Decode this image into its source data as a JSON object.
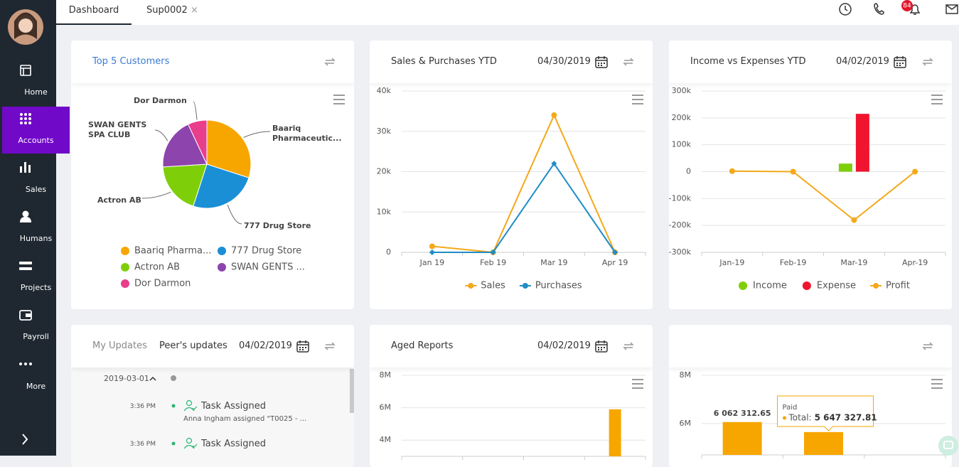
{
  "sidebar": {
    "items": [
      "Home",
      "Accounts",
      "Sales",
      "Humans",
      "Projects",
      "Payroll",
      "More"
    ],
    "active": 1
  },
  "topbar": {
    "tabs": [
      "Dashboard",
      "Sup0002"
    ],
    "notifications": 84
  },
  "updates": {
    "tabs": [
      "My Updates",
      "Peer's updates"
    ],
    "date": "04/02/2019",
    "day": "2019-03-01",
    "entries": [
      {
        "time": "3:36 PM",
        "title": "Task Assigned",
        "text": "Anna Ingham assigned \"T0025 - ..."
      },
      {
        "time": "3:36 PM",
        "title": "Task Assigned"
      }
    ]
  },
  "chart_data": [
    {
      "type": "pie",
      "title": "Top 5 Customers",
      "categories": [
        "Baariq Pharma...",
        "777 Drug Store",
        "Actron AB",
        "SWAN GENTS ...",
        "Dor Darmon"
      ],
      "labels": [
        "Baariq Pharmaceutic...",
        "777 Drug Store",
        "Actron AB",
        "SWAN GENTS SPA CLUB",
        "Dor Darmon"
      ],
      "values": [
        30,
        25,
        19,
        19,
        7
      ],
      "colors": [
        "#f7a600",
        "#1a8fd6",
        "#7ecf09",
        "#8e44ad",
        "#e83e8c"
      ]
    },
    {
      "type": "line",
      "title": "Sales & Purchases YTD",
      "date": "04/30/2019",
      "categories": [
        "Jan 19",
        "Feb 19",
        "Mar 19",
        "Apr 19"
      ],
      "series": [
        {
          "name": "Sales",
          "color": "#f4a81b",
          "marker": "circle",
          "values": [
            1500,
            0,
            34000,
            0
          ]
        },
        {
          "name": "Purchases",
          "color": "#1f8dc6",
          "marker": "diamond",
          "values": [
            0,
            0,
            22000,
            0
          ]
        }
      ],
      "ylim": [
        0,
        40000
      ],
      "yticks": [
        0,
        {
          "value": 10000,
          "label": "10k"
        },
        {
          "value": 20000,
          "label": "20k"
        },
        {
          "value": 30000,
          "label": "30k"
        },
        {
          "value": 40000,
          "label": "40k"
        }
      ],
      "grid": true
    },
    {
      "type": "combo",
      "title": "Income vs Expenses YTD",
      "date": "04/02/2019",
      "categories": [
        "Jan-19",
        "Feb-19",
        "Mar-19",
        "Apr-19"
      ],
      "series": [
        {
          "name": "Income",
          "kind": "bar",
          "color": "#7ecf09",
          "values": [
            0,
            0,
            30000,
            0
          ]
        },
        {
          "name": "Expense",
          "kind": "bar",
          "color": "#f0142f",
          "values": [
            0,
            0,
            215000,
            0
          ]
        },
        {
          "name": "Profit",
          "kind": "line",
          "color": "#f4a81b",
          "values": [
            2000,
            0,
            -180000,
            0
          ]
        }
      ],
      "ylim": [
        -300000,
        300000
      ],
      "yticks": [
        {
          "value": -300000,
          "label": "-300k"
        },
        {
          "value": -200000,
          "label": "-200k"
        },
        {
          "value": -100000,
          "label": "-100k"
        },
        0,
        {
          "value": 100000,
          "label": "100k"
        },
        {
          "value": 200000,
          "label": "200k"
        },
        {
          "value": 300000,
          "label": "300k"
        }
      ],
      "grid": true
    },
    {
      "type": "bar",
      "title": "Aged Reports",
      "date": "04/02/2019",
      "categories": [
        null,
        null,
        null,
        null
      ],
      "color": "#f7a600",
      "values": [
        null,
        null,
        null,
        5900000
      ],
      "ylim": [
        3000000,
        8000000
      ],
      "yticks": [
        {
          "value": 4000000,
          "label": "4M"
        },
        {
          "value": 6000000,
          "label": "6M"
        },
        {
          "value": 8000000,
          "label": "8M"
        }
      ],
      "grid": true
    },
    {
      "type": "bar",
      "categories": [
        null,
        null,
        null
      ],
      "series": [
        {
          "name": "Paid",
          "color": "#f7a600",
          "values": [
            6062312.65,
            5647327.81,
            null
          ],
          "value_labels": [
            "6 062 312.65",
            "5 647 327.81",
            null
          ]
        }
      ],
      "tooltip": {
        "label": "Total:",
        "index": 1
      },
      "ylim": [
        4700000,
        8000000
      ],
      "yticks": [
        {
          "value": 6000000,
          "label": "6M"
        },
        {
          "value": 8000000,
          "label": "8M"
        }
      ],
      "grid": true
    }
  ]
}
